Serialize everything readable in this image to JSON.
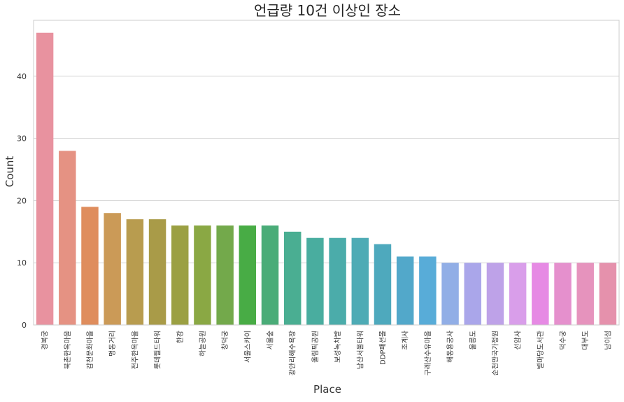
{
  "chart_data": {
    "type": "bar",
    "title": "언급량 10건 이상인 장소",
    "xlabel": "Place",
    "ylabel": "Count",
    "ylim": [
      0,
      49
    ],
    "yticks": [
      0,
      10,
      20,
      30,
      40
    ],
    "grid": "horizontal",
    "categories": [
      "경복궁",
      "북촌한옥마을",
      "감천문화마을",
      "명동거리",
      "전주한옥마을",
      "롯데월드타워",
      "한강",
      "하늘공원",
      "창덕궁",
      "서울스카이",
      "서울숲",
      "광안리해수욕장",
      "올림픽공원",
      "보성녹차밭",
      "남산서울타워",
      "DDP패션몰",
      "조계사",
      "구례산수유마을",
      "해동용궁사",
      "울릉도",
      "순천만국가정원",
      "선암사",
      "별마당도서관",
      "덕수궁",
      "대부도",
      "남이섬"
    ],
    "values": [
      47,
      28,
      19,
      18,
      17,
      17,
      16,
      16,
      16,
      16,
      16,
      15,
      14,
      14,
      14,
      13,
      11,
      11,
      10,
      10,
      10,
      10,
      10,
      10,
      10,
      10
    ],
    "colors": [
      "#e8929f",
      "#e59283",
      "#df8d5d",
      "#cb9a57",
      "#b89c4f",
      "#a99b48",
      "#9ba043",
      "#8aa844",
      "#73a94b",
      "#48ac45",
      "#4aac78",
      "#4aae92",
      "#49ad9f",
      "#4bacaa",
      "#4eabb5",
      "#4ea9bd",
      "#52a8ca",
      "#58acd8",
      "#91aee6",
      "#aaa6ea",
      "#bea2e8",
      "#d99eea",
      "#e68ae4",
      "#e590cd",
      "#e693bd",
      "#e591ac"
    ]
  }
}
